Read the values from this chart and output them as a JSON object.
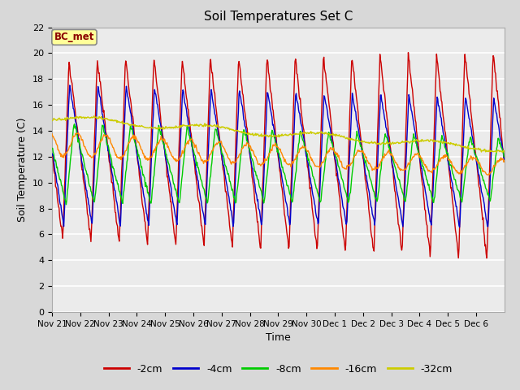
{
  "title": "Soil Temperatures Set C",
  "xlabel": "Time",
  "ylabel": "Soil Temperature (C)",
  "annotation": "BC_met",
  "ylim": [
    0,
    22
  ],
  "yticks": [
    0,
    2,
    4,
    6,
    8,
    10,
    12,
    14,
    16,
    18,
    20,
    22
  ],
  "series_colors": {
    "-2cm": "#cc0000",
    "-4cm": "#0000cc",
    "-8cm": "#00cc00",
    "-16cm": "#ff8800",
    "-32cm": "#cccc00"
  },
  "legend_labels": [
    "-2cm",
    "-4cm",
    "-8cm",
    "-16cm",
    "-32cm"
  ],
  "bg_color": "#d8d8d8",
  "plot_bg_color": "#ebebeb",
  "n_days": 16
}
